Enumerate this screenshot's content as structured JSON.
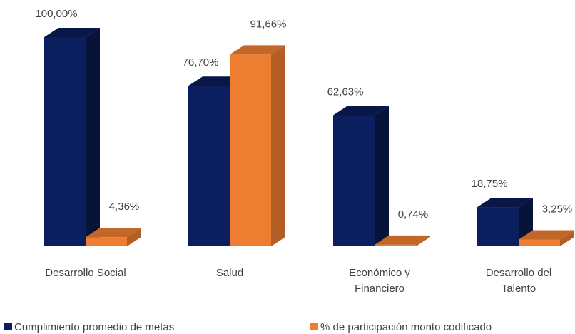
{
  "chart_data": {
    "type": "bar3d",
    "categories": [
      "Desarrollo Social",
      "Salud",
      "Económico y Financiero",
      "Desarrollo del Talento"
    ],
    "series": [
      {
        "name": "Cumplimiento promedio de metas",
        "color": "#0b1f5e",
        "values": [
          100,
          76.7,
          62.63,
          18.75
        ],
        "value_labels": [
          "100,00%",
          "76,70%",
          "62,63%",
          "18,75%"
        ]
      },
      {
        "name": "% de participación monto codificado",
        "color": "#ed7d31",
        "values": [
          4.36,
          91.66,
          0.74,
          3.25
        ],
        "value_labels": [
          "4,36%",
          "91,66%",
          "0,74%",
          "3,25%"
        ]
      }
    ],
    "ylim": [
      0,
      100
    ]
  }
}
